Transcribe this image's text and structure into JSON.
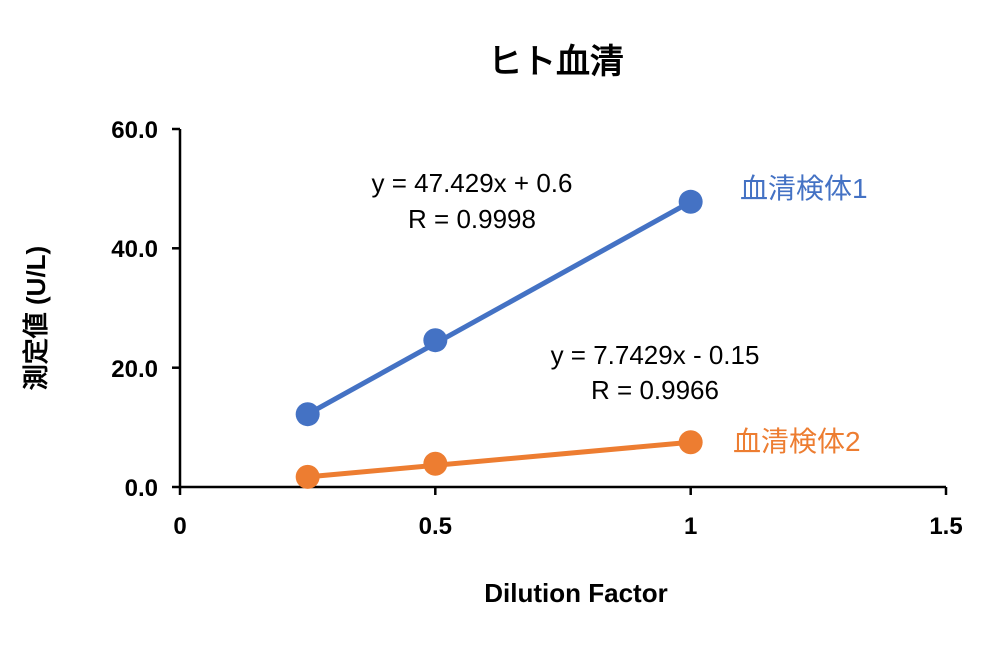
{
  "chart_data": {
    "type": "scatter",
    "title": "ヒト血清",
    "xlabel": "Dilution Factor",
    "ylabel": "測定値 (U/L)",
    "xlim": [
      0,
      1.5
    ],
    "ylim": [
      0,
      60
    ],
    "x_ticks": [
      "0",
      "0.5",
      "1",
      "1.5"
    ],
    "y_ticks": [
      "0.0",
      "20.0",
      "40.0",
      "60.0"
    ],
    "grid": false,
    "legend": "none",
    "series": [
      {
        "name": "血清検体1",
        "color": "#4472C4",
        "x": [
          0.25,
          0.5,
          1.0
        ],
        "y": [
          12.2,
          24.6,
          47.8
        ],
        "equation": "y = 47.429x + 0.6",
        "r": "R = 0.9998"
      },
      {
        "name": "血清検体2",
        "color": "#ED7D31",
        "x": [
          0.25,
          0.5,
          1.0
        ],
        "y": [
          1.7,
          3.9,
          7.5
        ],
        "equation": "y = 7.7429x - 0.15",
        "r": "R = 0.9966"
      }
    ]
  }
}
